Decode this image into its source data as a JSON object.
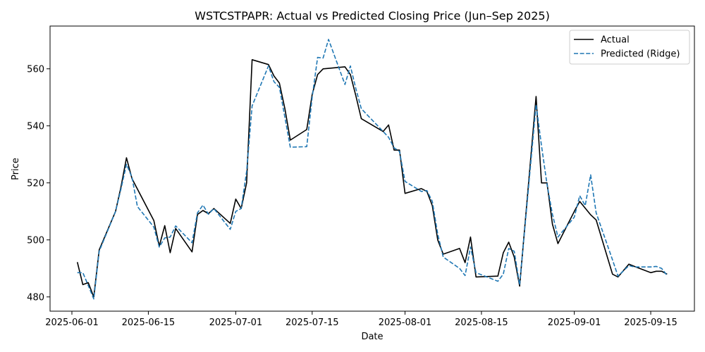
{
  "chart_data": {
    "type": "line",
    "title": "WSTCSTPAPR: Actual vs Predicted Closing Price (Jun–Sep 2025)",
    "xlabel": "Date",
    "ylabel": "Price",
    "xlim": [
      "2025-05-28",
      "2025-09-23"
    ],
    "ylim": [
      475,
      575
    ],
    "xticks": [
      "2025-06-01",
      "2025-06-15",
      "2025-07-01",
      "2025-07-15",
      "2025-08-01",
      "2025-08-15",
      "2025-09-01",
      "2025-09-15"
    ],
    "yticks": [
      480,
      500,
      520,
      540,
      560
    ],
    "grid": false,
    "legend": "upper right",
    "series": [
      {
        "name": "Actual",
        "color": "#000000",
        "style": "solid",
        "points": [
          [
            "2025-06-02",
            492.2
          ],
          [
            "2025-06-03",
            484.3
          ],
          [
            "2025-06-04",
            485.0
          ],
          [
            "2025-06-05",
            480.0
          ],
          [
            "2025-06-06",
            496.5
          ],
          [
            "2025-06-09",
            510.0
          ],
          [
            "2025-06-10",
            518.7
          ],
          [
            "2025-06-11",
            528.8
          ],
          [
            "2025-06-12",
            521.5
          ],
          [
            "2025-06-16",
            506.8
          ],
          [
            "2025-06-17",
            497.8
          ],
          [
            "2025-06-18",
            505.0
          ],
          [
            "2025-06-19",
            495.5
          ],
          [
            "2025-06-20",
            504.0
          ],
          [
            "2025-06-23",
            495.8
          ],
          [
            "2025-06-24",
            508.9
          ],
          [
            "2025-06-25",
            510.3
          ],
          [
            "2025-06-26",
            509.2
          ],
          [
            "2025-06-27",
            511.0
          ],
          [
            "2025-06-30",
            505.8
          ],
          [
            "2025-07-01",
            514.3
          ],
          [
            "2025-07-02",
            511.0
          ],
          [
            "2025-07-03",
            520.0
          ],
          [
            "2025-07-04",
            563.2
          ],
          [
            "2025-07-07",
            561.5
          ],
          [
            "2025-07-08",
            557.5
          ],
          [
            "2025-07-09",
            555.0
          ],
          [
            "2025-07-10",
            546.0
          ],
          [
            "2025-07-11",
            535.0
          ],
          [
            "2025-07-14",
            538.7
          ],
          [
            "2025-07-15",
            551.0
          ],
          [
            "2025-07-16",
            558.0
          ],
          [
            "2025-07-17",
            560.0
          ],
          [
            "2025-07-21",
            560.7
          ],
          [
            "2025-07-22",
            558.0
          ],
          [
            "2025-07-23",
            550.5
          ],
          [
            "2025-07-24",
            542.5
          ],
          [
            "2025-07-28",
            538.0
          ],
          [
            "2025-07-29",
            540.3
          ],
          [
            "2025-07-30",
            531.5
          ],
          [
            "2025-07-31",
            531.5
          ],
          [
            "2025-08-01",
            516.3
          ],
          [
            "2025-08-04",
            518.0
          ],
          [
            "2025-08-05",
            517.0
          ],
          [
            "2025-08-06",
            512.0
          ],
          [
            "2025-08-07",
            500.0
          ],
          [
            "2025-08-08",
            495.0
          ],
          [
            "2025-08-11",
            497.0
          ],
          [
            "2025-08-12",
            492.0
          ],
          [
            "2025-08-13",
            501.0
          ],
          [
            "2025-08-14",
            487.0
          ],
          [
            "2025-08-18",
            487.3
          ],
          [
            "2025-08-19",
            495.5
          ],
          [
            "2025-08-20",
            499.2
          ],
          [
            "2025-08-21",
            494.0
          ],
          [
            "2025-08-22",
            483.8
          ],
          [
            "2025-08-25",
            550.3
          ],
          [
            "2025-08-26",
            520.0
          ],
          [
            "2025-08-27",
            520.0
          ],
          [
            "2025-08-28",
            505.5
          ],
          [
            "2025-08-29",
            498.7
          ],
          [
            "2025-09-01",
            510.0
          ],
          [
            "2025-09-02",
            513.5
          ],
          [
            "2025-09-04",
            508.8
          ],
          [
            "2025-09-05",
            507.0
          ],
          [
            "2025-09-08",
            488.0
          ],
          [
            "2025-09-09",
            487.0
          ],
          [
            "2025-09-11",
            491.5
          ],
          [
            "2025-09-12",
            490.7
          ],
          [
            "2025-09-15",
            488.5
          ],
          [
            "2025-09-16",
            489.0
          ],
          [
            "2025-09-17",
            489.0
          ],
          [
            "2025-09-18",
            488.0
          ]
        ]
      },
      {
        "name": "Predicted (Ridge)",
        "color": "#1f77b4",
        "style": "dashed",
        "points": [
          [
            "2025-06-02",
            488.5
          ],
          [
            "2025-06-03",
            488.5
          ],
          [
            "2025-06-04",
            484.0
          ],
          [
            "2025-06-05",
            479.3
          ],
          [
            "2025-06-06",
            496.0
          ],
          [
            "2025-06-09",
            510.0
          ],
          [
            "2025-06-10",
            518.0
          ],
          [
            "2025-06-11",
            526.5
          ],
          [
            "2025-06-12",
            522.0
          ],
          [
            "2025-06-13",
            511.7
          ],
          [
            "2025-06-16",
            504.5
          ],
          [
            "2025-06-17",
            497.5
          ],
          [
            "2025-06-18",
            500.7
          ],
          [
            "2025-06-19",
            501.0
          ],
          [
            "2025-06-20",
            504.9
          ],
          [
            "2025-06-23",
            499.0
          ],
          [
            "2025-06-24",
            509.5
          ],
          [
            "2025-06-25",
            512.2
          ],
          [
            "2025-06-26",
            509.0
          ],
          [
            "2025-06-27",
            511.0
          ],
          [
            "2025-06-30",
            503.7
          ],
          [
            "2025-07-01",
            510.0
          ],
          [
            "2025-07-02",
            511.0
          ],
          [
            "2025-07-03",
            524.0
          ],
          [
            "2025-07-04",
            547.0
          ],
          [
            "2025-07-07",
            561.0
          ],
          [
            "2025-07-08",
            555.5
          ],
          [
            "2025-07-09",
            553.5
          ],
          [
            "2025-07-10",
            543.0
          ],
          [
            "2025-07-11",
            532.5
          ],
          [
            "2025-07-14",
            532.7
          ],
          [
            "2025-07-15",
            550.0
          ],
          [
            "2025-07-16",
            564.0
          ],
          [
            "2025-07-17",
            563.8
          ],
          [
            "2025-07-18",
            570.3
          ],
          [
            "2025-07-21",
            554.5
          ],
          [
            "2025-07-22",
            561.0
          ],
          [
            "2025-07-23",
            553.0
          ],
          [
            "2025-07-24",
            546.0
          ],
          [
            "2025-07-28",
            538.0
          ],
          [
            "2025-07-29",
            536.0
          ],
          [
            "2025-07-30",
            532.3
          ],
          [
            "2025-07-31",
            531.0
          ],
          [
            "2025-08-01",
            520.5
          ],
          [
            "2025-08-04",
            517.0
          ],
          [
            "2025-08-05",
            517.3
          ],
          [
            "2025-08-06",
            513.5
          ],
          [
            "2025-08-07",
            502.0
          ],
          [
            "2025-08-08",
            494.0
          ],
          [
            "2025-08-11",
            490.0
          ],
          [
            "2025-08-12",
            487.5
          ],
          [
            "2025-08-13",
            497.5
          ],
          [
            "2025-08-14",
            488.5
          ],
          [
            "2025-08-18",
            485.5
          ],
          [
            "2025-08-19",
            488.0
          ],
          [
            "2025-08-20",
            497.0
          ],
          [
            "2025-08-21",
            496.0
          ],
          [
            "2025-08-22",
            484.2
          ],
          [
            "2025-08-25",
            547.5
          ],
          [
            "2025-08-26",
            533.0
          ],
          [
            "2025-08-27",
            519.5
          ],
          [
            "2025-08-28",
            509.0
          ],
          [
            "2025-08-29",
            501.0
          ],
          [
            "2025-09-01",
            508.0
          ],
          [
            "2025-09-02",
            515.5
          ],
          [
            "2025-09-03",
            512.0
          ],
          [
            "2025-09-04",
            522.8
          ],
          [
            "2025-09-05",
            509.5
          ],
          [
            "2025-09-08",
            493.0
          ],
          [
            "2025-09-09",
            487.3
          ],
          [
            "2025-09-11",
            491.0
          ],
          [
            "2025-09-12",
            490.5
          ],
          [
            "2025-09-15",
            490.5
          ],
          [
            "2025-09-16",
            490.7
          ],
          [
            "2025-09-17",
            490.0
          ],
          [
            "2025-09-18",
            487.5
          ]
        ]
      }
    ]
  }
}
